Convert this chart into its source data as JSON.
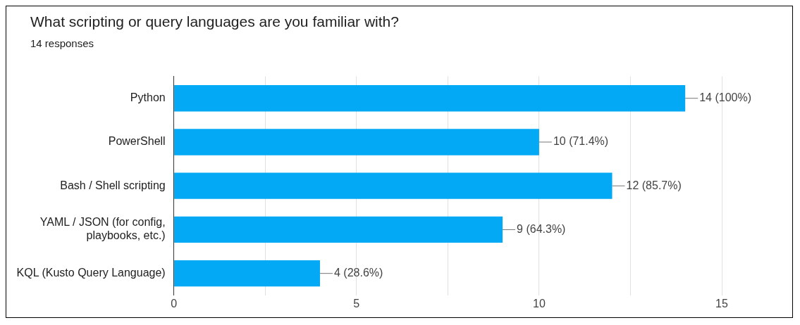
{
  "chart_data": {
    "type": "bar",
    "orientation": "horizontal",
    "title": "What scripting or query languages are you familiar with?",
    "subtitle": "14 responses",
    "categories": [
      "Python",
      "PowerShell",
      "Bash / Shell scripting",
      "YAML / JSON (for config, playbooks, etc.)",
      "KQL (Kusto Query Language)"
    ],
    "values": [
      14,
      10,
      12,
      9,
      4
    ],
    "value_labels": [
      "14 (100%)",
      "10 (71.4%)",
      "12 (85.7%)",
      "9 (64.3%)",
      "4 (28.6%)"
    ],
    "color": "#03a9f4",
    "xlim": [
      0,
      15
    ],
    "xticks": [
      0,
      {
        "value": 2.5,
        "label": null
      },
      5,
      {
        "value": 7.5,
        "label": null
      },
      10,
      {
        "value": 12.5,
        "label": null
      },
      15
    ],
    "grid": "x",
    "legend": false
  }
}
